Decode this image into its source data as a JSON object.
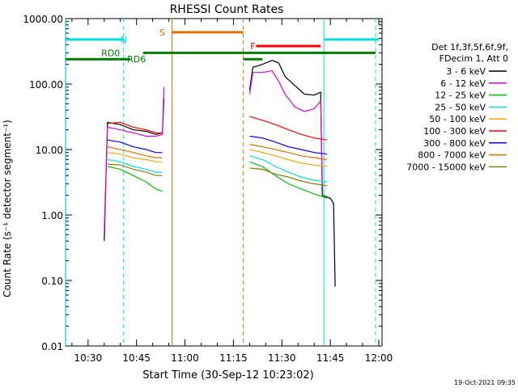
{
  "chart_data": {
    "type": "line",
    "title": "RHESSI Count Rates",
    "xlabel": "Start Time (30-Sep-12 10:23:02)",
    "ylabel": "Count Rate (s⁻¹ detector segment⁻¹)",
    "y_scale": "log",
    "ylim": [
      0.01,
      1000
    ],
    "xlim": [
      "10:23:02",
      "12:01:00"
    ],
    "x_ticks": [
      "10:30",
      "10:45",
      "11:00",
      "11:15",
      "11:30",
      "11:45",
      "12:00"
    ],
    "y_ticks": [
      "0.01",
      "0.10",
      "1.00",
      "10.00",
      "100.00",
      "1000.00"
    ],
    "timestamp": "19-Oct-2021 09:35",
    "legend": {
      "header": [
        "Det 1f,3f,5f,6f,9f,",
        "FDecim 1, Att 0"
      ],
      "placement": "right"
    },
    "series": [
      {
        "name": "3 - 6 keV",
        "color": "#000000",
        "segments": [
          {
            "x": [
              "10:35:00",
              "10:36:00",
              "10:40:00",
              "10:44:00",
              "10:48:00",
              "10:51:00",
              "10:53:00",
              "10:53:30"
            ],
            "y": [
              0.4,
              26,
              24,
              20,
              19,
              17,
              18,
              60
            ]
          },
          {
            "x": [
              "11:20:00",
              "11:21:00",
              "11:24:00",
              "11:27:00",
              "11:29:00",
              "11:31:00",
              "11:34:00",
              "11:37:00",
              "11:40:00",
              "11:42:00",
              "11:42:30",
              "11:45:00",
              "11:46:00",
              "11:46:30"
            ],
            "y": [
              80,
              180,
              200,
              230,
              210,
              130,
              95,
              70,
              68,
              75,
              2.0,
              1.8,
              1.5,
              0.08
            ]
          }
        ]
      },
      {
        "name": "6 - 12 keV",
        "color": "#e000e0",
        "segments": [
          {
            "x": [
              "10:35:00",
              "10:36:00",
              "10:40:00",
              "10:44:00",
              "10:48:00",
              "10:51:00",
              "10:53:00",
              "10:53:30"
            ],
            "y": [
              0.6,
              22,
              20,
              18,
              16,
              16,
              17,
              90
            ]
          },
          {
            "x": [
              "11:20:00",
              "11:21:00",
              "11:24:00",
              "11:27:00",
              "11:29:00",
              "11:31:00",
              "11:34:00",
              "11:37:00",
              "11:40:00",
              "11:42:00",
              "11:42:30"
            ],
            "y": [
              70,
              150,
              150,
              160,
              110,
              70,
              45,
              38,
              42,
              55,
              3.0
            ]
          }
        ]
      },
      {
        "name": "12 - 25 keV",
        "color": "#00c000",
        "segments": [
          {
            "x": [
              "10:36:00",
              "10:40:00",
              "10:44:00",
              "10:48:00",
              "10:51:00",
              "10:53:00"
            ],
            "y": [
              5.5,
              5.0,
              4.0,
              3.2,
              2.5,
              2.3
            ]
          },
          {
            "x": [
              "11:20:00",
              "11:24:00",
              "11:28:00",
              "11:32:00",
              "11:36:00",
              "11:40:00",
              "11:44:00"
            ],
            "y": [
              6.5,
              5.5,
              4.0,
              3.0,
              2.5,
              2.1,
              1.8
            ]
          }
        ]
      },
      {
        "name": "25 - 50 keV",
        "color": "#00e0e0",
        "segments": [
          {
            "x": [
              "10:36:00",
              "10:40:00",
              "10:44:00",
              "10:48:00",
              "10:51:00",
              "10:53:00"
            ],
            "y": [
              7,
              6.5,
              5.5,
              5,
              4.5,
              4.5
            ]
          },
          {
            "x": [
              "11:20:00",
              "11:24:00",
              "11:28:00",
              "11:32:00",
              "11:36:00",
              "11:40:00",
              "11:44:00"
            ],
            "y": [
              8,
              7,
              5.5,
              4.5,
              3.8,
              3.4,
              3.2
            ]
          }
        ]
      },
      {
        "name": "50 - 100 keV",
        "color": "#ffa500",
        "segments": [
          {
            "x": [
              "10:36:00",
              "10:40:00",
              "10:44:00",
              "10:48:00",
              "10:51:00",
              "10:53:00"
            ],
            "y": [
              9,
              8.5,
              7.5,
              7,
              6.5,
              6.5
            ]
          },
          {
            "x": [
              "11:20:00",
              "11:24:00",
              "11:28:00",
              "11:32:00",
              "11:36:00",
              "11:40:00",
              "11:44:00"
            ],
            "y": [
              10,
              9,
              8,
              7,
              6.2,
              5.8,
              5.5
            ]
          }
        ]
      },
      {
        "name": "100 - 300 keV",
        "color": "#ff0000",
        "segments": [
          {
            "x": [
              "10:36:00",
              "10:40:00",
              "10:44:00",
              "10:48:00",
              "10:51:00",
              "10:53:00"
            ],
            "y": [
              25,
              26,
              22,
              20,
              18,
              18
            ]
          },
          {
            "x": [
              "11:20:00",
              "11:24:00",
              "11:28:00",
              "11:32:00",
              "11:36:00",
              "11:40:00",
              "11:44:00"
            ],
            "y": [
              32,
              28,
              24,
              20,
              17,
              15,
              14
            ]
          }
        ]
      },
      {
        "name": "300 - 800 keV",
        "color": "#0000ff",
        "segments": [
          {
            "x": [
              "10:36:00",
              "10:40:00",
              "10:44:00",
              "10:48:00",
              "10:51:00",
              "10:53:00"
            ],
            "y": [
              14,
              13,
              11,
              10,
              9,
              9
            ]
          },
          {
            "x": [
              "11:20:00",
              "11:24:00",
              "11:28:00",
              "11:32:00",
              "11:36:00",
              "11:40:00",
              "11:44:00"
            ],
            "y": [
              16,
              15,
              13,
              11,
              10,
              9,
              8.5
            ]
          }
        ]
      },
      {
        "name": "800 - 7000 keV",
        "color": "#e07000",
        "segments": [
          {
            "x": [
              "10:36:00",
              "10:40:00",
              "10:44:00",
              "10:48:00",
              "10:51:00",
              "10:53:00"
            ],
            "y": [
              11,
              10,
              9,
              8,
              7.5,
              7.5
            ]
          },
          {
            "x": [
              "11:20:00",
              "11:24:00",
              "11:28:00",
              "11:32:00",
              "11:36:00",
              "11:40:00",
              "11:44:00"
            ],
            "y": [
              12,
              11,
              10,
              9,
              8,
              7.5,
              7
            ]
          }
        ]
      },
      {
        "name": "7000 - 15000 keV",
        "color": "#808000",
        "segments": [
          {
            "x": [
              "10:36:00",
              "10:40:00",
              "10:44:00",
              "10:48:00",
              "10:51:00",
              "10:53:00"
            ],
            "y": [
              6,
              5.8,
              5,
              4.5,
              4,
              4
            ]
          },
          {
            "x": [
              "11:20:00",
              "11:24:00",
              "11:28:00",
              "11:32:00",
              "11:36:00",
              "11:40:00",
              "11:44:00"
            ],
            "y": [
              5.2,
              5,
              4.2,
              3.8,
              3.3,
              3,
              2.8
            ]
          }
        ]
      }
    ],
    "annotations": {
      "vlines": [
        {
          "x": "10:23:00",
          "color": "#00e0e0",
          "style": "solid"
        },
        {
          "x": "10:41:00",
          "color": "#00e0e0",
          "style": "dashed"
        },
        {
          "x": "10:56:00",
          "color": "#e07000",
          "style": "solid"
        },
        {
          "x": "11:18:00",
          "color": "#e07000",
          "style": "dashed"
        },
        {
          "x": "11:43:00",
          "color": "#00e0e0",
          "style": "solid"
        },
        {
          "x": "11:59:00",
          "color": "#00e0e0",
          "style": "dashed"
        }
      ],
      "flag_bars": [
        {
          "label": "N",
          "label_at": "10:41:00",
          "color": "#00e0e0",
          "y": 480,
          "segments": [
            [
              "10:23:00",
              "10:41:00"
            ],
            [
              "11:43:00",
              "12:00:00"
            ]
          ]
        },
        {
          "label": "S",
          "label_at": "10:53:00",
          "color": "#e07000",
          "y": 620,
          "segments": [
            [
              "10:56:00",
              "11:18:00"
            ]
          ]
        },
        {
          "label": "F",
          "label_at": "11:21:00",
          "color": "#ff0000",
          "y": 380,
          "segments": [
            [
              "11:22:00",
              "11:42:00"
            ]
          ]
        },
        {
          "label": "RD0",
          "label_at": "10:37:00",
          "color": "#008000",
          "y": 300,
          "segments": [
            [
              "10:47:00",
              "11:59:00"
            ]
          ]
        },
        {
          "label": "RD6",
          "label_at": "10:45:00",
          "color": "#008000",
          "y": 240,
          "segments": [
            [
              "10:23:00",
              "10:43:00"
            ],
            [
              "11:18:00",
              "11:24:00"
            ]
          ]
        }
      ]
    }
  }
}
